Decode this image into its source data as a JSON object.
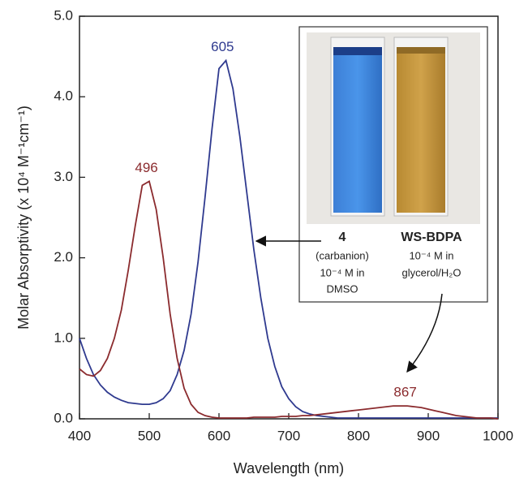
{
  "chart_data": {
    "type": "line",
    "xlabel": "Wavelength (nm)",
    "ylabel": "Molar Absorptivity (x 10⁴ M⁻¹cm⁻¹)",
    "xlim": [
      400,
      1000
    ],
    "ylim": [
      0,
      5
    ],
    "xticks": [
      400,
      500,
      600,
      700,
      800,
      900,
      1000
    ],
    "yticks": [
      {
        "value": 0,
        "label": "0.0"
      },
      {
        "value": 1,
        "label": "1.0"
      },
      {
        "value": 2,
        "label": "2.0"
      },
      {
        "value": 3,
        "label": "3.0"
      },
      {
        "value": 4,
        "label": "4.0"
      },
      {
        "value": 5,
        "label": "5.0"
      }
    ],
    "x": [
      400,
      410,
      420,
      430,
      440,
      450,
      460,
      470,
      480,
      490,
      500,
      510,
      520,
      530,
      540,
      550,
      560,
      570,
      580,
      590,
      600,
      610,
      620,
      630,
      640,
      650,
      660,
      670,
      680,
      690,
      700,
      710,
      720,
      730,
      740,
      750,
      760,
      770,
      780,
      790,
      800,
      810,
      820,
      830,
      840,
      850,
      860,
      870,
      880,
      890,
      900,
      910,
      920,
      930,
      940,
      950,
      960,
      970,
      980,
      990,
      1000
    ],
    "series": [
      {
        "name": "4",
        "color": "#2f3a8f",
        "peaks": [
          605
        ],
        "values": [
          1.0,
          0.75,
          0.55,
          0.42,
          0.33,
          0.27,
          0.23,
          0.2,
          0.19,
          0.18,
          0.18,
          0.2,
          0.25,
          0.35,
          0.55,
          0.85,
          1.3,
          1.95,
          2.75,
          3.6,
          4.35,
          4.45,
          4.1,
          3.5,
          2.8,
          2.1,
          1.5,
          1.0,
          0.65,
          0.4,
          0.25,
          0.15,
          0.09,
          0.06,
          0.04,
          0.03,
          0.02,
          0.01,
          0.01,
          0.01,
          0.01,
          0.01,
          0.01,
          0.01,
          0.01,
          0.01,
          0.01,
          0.01,
          0.01,
          0.01,
          0.01,
          0.01,
          0.01,
          0.01,
          0.01,
          0.01,
          0.01,
          0.01,
          0.01,
          0.01,
          0.01
        ]
      },
      {
        "name": "WS-BDPA",
        "color": "#8b2b2e",
        "peaks": [
          496,
          867
        ],
        "values": [
          0.62,
          0.55,
          0.53,
          0.6,
          0.75,
          1.0,
          1.35,
          1.85,
          2.4,
          2.9,
          2.95,
          2.6,
          2.0,
          1.3,
          0.75,
          0.38,
          0.18,
          0.08,
          0.04,
          0.02,
          0.01,
          0.01,
          0.01,
          0.01,
          0.01,
          0.02,
          0.02,
          0.02,
          0.02,
          0.03,
          0.03,
          0.03,
          0.04,
          0.04,
          0.05,
          0.06,
          0.07,
          0.08,
          0.09,
          0.1,
          0.11,
          0.12,
          0.13,
          0.14,
          0.15,
          0.16,
          0.16,
          0.16,
          0.15,
          0.14,
          0.12,
          0.1,
          0.08,
          0.06,
          0.04,
          0.03,
          0.02,
          0.01,
          0.01,
          0.01,
          0.0
        ]
      }
    ],
    "inset": {
      "left": [
        "(carbanion)",
        "10⁻⁴ M in",
        "DMSO"
      ],
      "right": [
        "10⁻⁴ M in",
        "glycerol/H₂O"
      ]
    }
  }
}
